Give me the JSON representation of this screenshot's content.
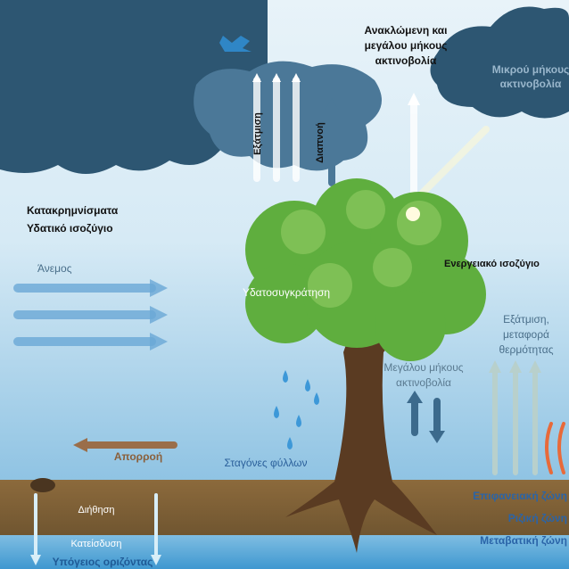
{
  "labels": {
    "reflected": [
      "Ανακλώμενη και",
      "μεγάλου μήκους",
      "ακτινοβολία"
    ],
    "shortwave": [
      "Μικρού μήκους",
      "ακτινοβολία"
    ],
    "evaporation_top": "Εξάτμιση",
    "transpiration": "Διαπνοή",
    "water_balance": [
      "Κατακρημνίσματα",
      "Υδατικό ισοζύγιο"
    ],
    "wind": "Άνεμος",
    "energy_balance": "Ενεργειακό ισοζύγιο",
    "interception": "Υδατοσυγκράτηση",
    "evaporation_heat": [
      "Εξάτμιση,",
      "μεταφορά",
      "θερμότητας"
    ],
    "longwave": [
      "Μεγάλου μήκους",
      "ακτινοβολία"
    ],
    "leaf_drops": "Σταγόνες φύλλων",
    "runoff": "Απορροή",
    "infiltration": "Διήθηση",
    "percolation": "Κατείσδυση",
    "groundwater": "Υπόγειος οριζόντας",
    "zones": [
      "Επιφανειακή ζώνη",
      "Ριζική ζώνη",
      "Μεταβατική ζώνη"
    ]
  }
}
